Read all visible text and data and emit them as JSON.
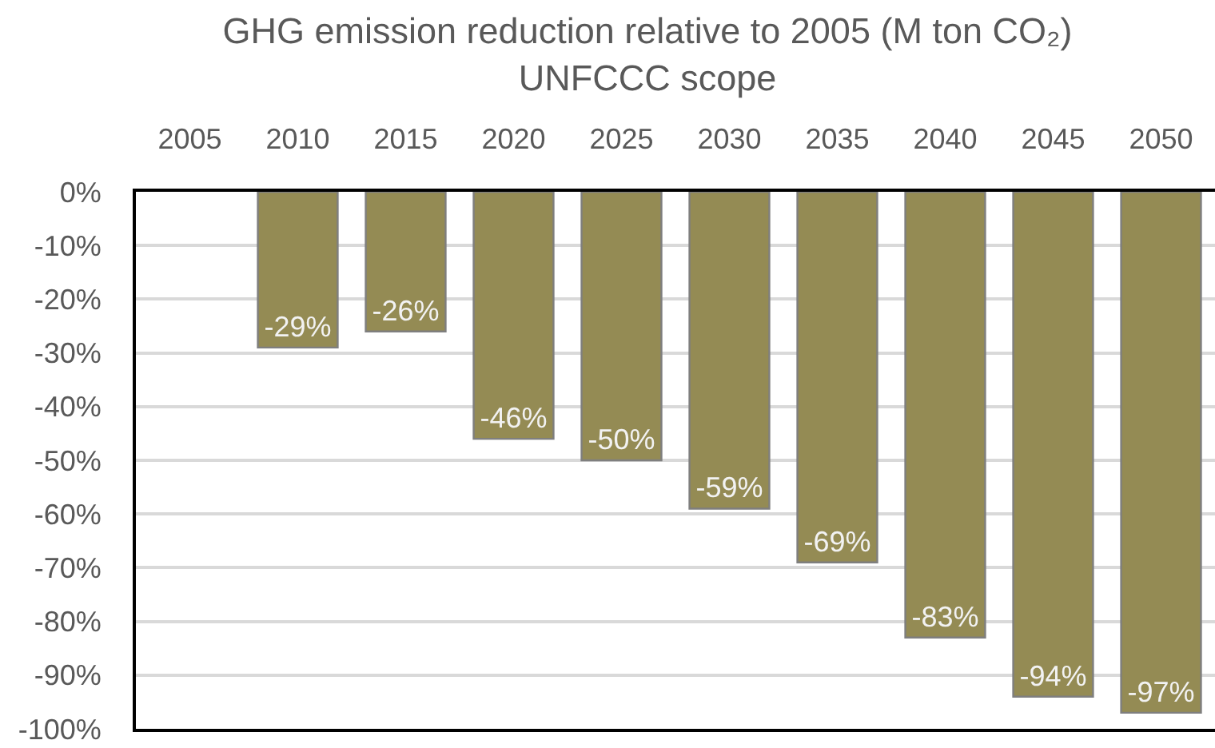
{
  "chart_data": {
    "type": "bar",
    "title": "GHG emission reduction relative to 2005 (M ton CO₂)",
    "subtitle": "UNFCCC scope",
    "categories": [
      "2005",
      "2010",
      "2015",
      "2020",
      "2025",
      "2030",
      "2035",
      "2040",
      "2045",
      "2050"
    ],
    "values": [
      null,
      -29,
      -26,
      -46,
      -50,
      -59,
      -69,
      -83,
      -94,
      -97
    ],
    "value_labels": [
      null,
      "-29%",
      "-26%",
      "-46%",
      "-50%",
      "-59%",
      "-69%",
      "-83%",
      "-94%",
      "-97%"
    ],
    "color": "#948b54",
    "ylim": [
      -100,
      0
    ],
    "yticks": [
      {
        "value": 0,
        "label": "0%"
      },
      {
        "value": -10,
        "label": "-10%"
      },
      {
        "value": -20,
        "label": "-20%"
      },
      {
        "value": -30,
        "label": "-30%"
      },
      {
        "value": -40,
        "label": "-40%"
      },
      {
        "value": -50,
        "label": "-50%"
      },
      {
        "value": -60,
        "label": "-60%"
      },
      {
        "value": -70,
        "label": "-70%"
      },
      {
        "value": -80,
        "label": "-80%"
      },
      {
        "value": -90,
        "label": "-90%"
      },
      {
        "value": -100,
        "label": "-100%"
      }
    ],
    "grid": "y"
  }
}
